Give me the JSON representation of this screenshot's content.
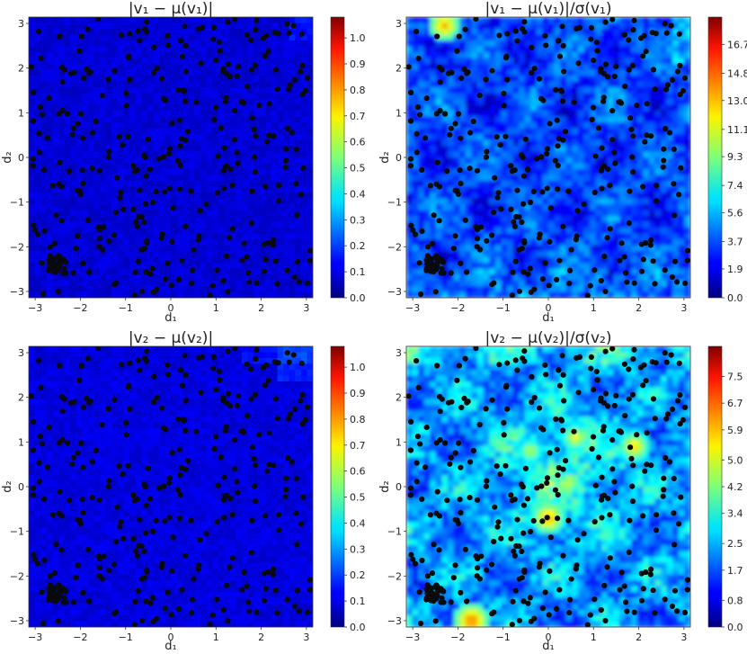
{
  "chart_data": [
    {
      "type": "heatmap",
      "title": "|v₁ − μ(v₁)|",
      "xlabel": "d₁",
      "ylabel": "d₂",
      "xlim": [
        -3.1416,
        3.1416
      ],
      "ylim": [
        -3.1416,
        3.1416
      ],
      "xticks": [
        "−3",
        "−2",
        "−1",
        "0",
        "1",
        "2",
        "3"
      ],
      "yticks": [
        "−3",
        "−2",
        "−1",
        "0",
        "1",
        "2",
        "3"
      ],
      "colorbar": {
        "min": 0.0,
        "max": 1.08,
        "ticks": [
          "0.0",
          "0.1",
          "0.2",
          "0.3",
          "0.4",
          "0.5",
          "0.6",
          "0.7",
          "0.8",
          "0.9",
          "1.0"
        ]
      },
      "field_level": "low, nearly uniform (~0.02–0.08)",
      "colormap": "jet",
      "markers": "black training points"
    },
    {
      "type": "heatmap",
      "title": "|v₁ − μ(v₁)|/σ(v₁)",
      "xlabel": "d₁",
      "ylabel": "d₂",
      "xlim": [
        -3.1416,
        3.1416
      ],
      "ylim": [
        -3.1416,
        3.1416
      ],
      "xticks": [
        "−3",
        "−2",
        "−1",
        "0",
        "1",
        "2",
        "3"
      ],
      "yticks": [
        "−3",
        "−2",
        "−1",
        "0",
        "1",
        "2",
        "3"
      ],
      "colorbar": {
        "min": 0.0,
        "max": 18.5,
        "ticks": [
          "0.0",
          "1.9",
          "3.7",
          "5.6",
          "7.4",
          "9.3",
          "11.1",
          "13.0",
          "14.8",
          "16.7"
        ]
      },
      "field_level": "mostly 1–5 with a hot spot near (−2.3, 2.9)",
      "colormap": "jet",
      "markers": "black training points"
    },
    {
      "type": "heatmap",
      "title": "|v₂ − μ(v₂)|",
      "xlabel": "d₁",
      "ylabel": "d₂",
      "xlim": [
        -3.1416,
        3.1416
      ],
      "ylim": [
        -3.1416,
        3.1416
      ],
      "xticks": [
        "−3",
        "−2",
        "−1",
        "0",
        "1",
        "2",
        "3"
      ],
      "yticks": [
        "−3",
        "−2",
        "−1",
        "0",
        "1",
        "2",
        "3"
      ],
      "colorbar": {
        "min": 0.0,
        "max": 1.08,
        "ticks": [
          "0.0",
          "0.1",
          "0.2",
          "0.3",
          "0.4",
          "0.5",
          "0.6",
          "0.7",
          "0.8",
          "0.9",
          "1.0"
        ]
      },
      "field_level": "low, nearly uniform (~0.02–0.08)",
      "colormap": "jet",
      "markers": "black training points"
    },
    {
      "type": "heatmap",
      "title": "|v₂ − μ(v₂)|/σ(v₂)",
      "xlabel": "d₁",
      "ylabel": "d₂",
      "xlim": [
        -3.1416,
        3.1416
      ],
      "ylim": [
        -3.1416,
        3.1416
      ],
      "xticks": [
        "−3",
        "−2",
        "−1",
        "0",
        "1",
        "2",
        "3"
      ],
      "yticks": [
        "−3",
        "−2",
        "−1",
        "0",
        "1",
        "2",
        "3"
      ],
      "colorbar": {
        "min": 0.0,
        "max": 8.4,
        "ticks": [
          "0.0",
          "0.8",
          "1.7",
          "2.5",
          "3.4",
          "4.2",
          "5.0",
          "5.9",
          "6.7",
          "7.5"
        ]
      },
      "field_level": "1–4 with hot spots near (0, −0.7), (1.9, 0.9) and along bottom edge near d₁ ≈ −1.7",
      "colormap": "jet",
      "markers": "black training points"
    }
  ]
}
